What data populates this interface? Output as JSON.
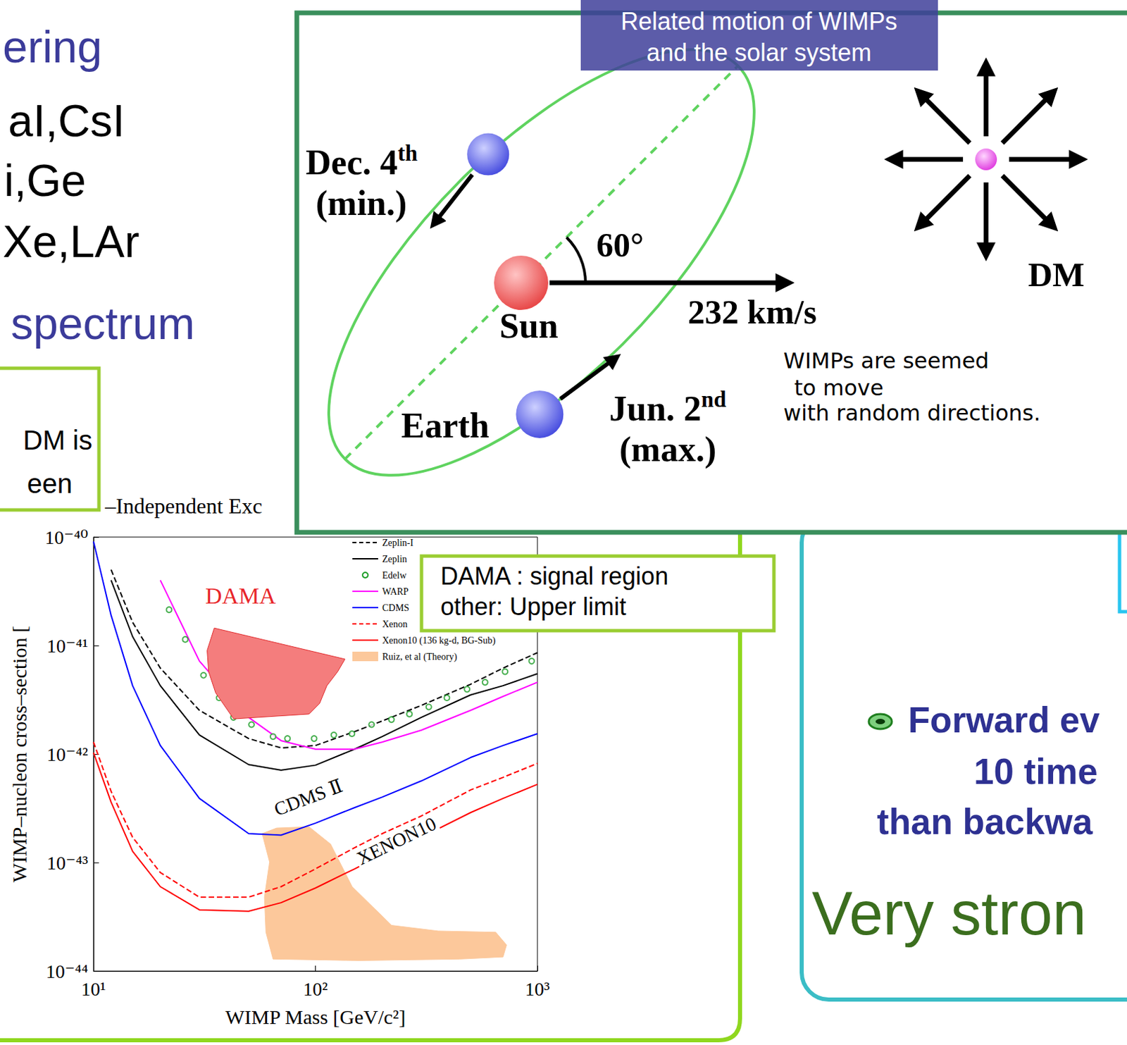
{
  "slide_background": {
    "lines": [
      "ering",
      "aI,CsI",
      "i,Ge",
      "Xe,LAr",
      "spectrum"
    ]
  },
  "side_note": {
    "lines": [
      "DM is",
      "een"
    ]
  },
  "chart_data": {
    "type": "line",
    "title": "–Independent Exc",
    "x_label": "WIMP Mass [GeV/c²]",
    "y_label": "WIMP–nucleon cross–section [",
    "log": true,
    "grid": false,
    "legend": "top-right",
    "xlim": [
      10,
      1000
    ],
    "ylim": [
      1e-44,
      1e-40
    ],
    "xticks": [
      {
        "value": 10,
        "label": "10¹"
      },
      {
        "value": 100,
        "label": "10²"
      },
      {
        "value": 1000,
        "label": "10³"
      }
    ],
    "yticks": [
      {
        "value": 1e-44,
        "label": "10⁻⁴⁴"
      },
      {
        "value": 1e-43,
        "label": "10⁻⁴³"
      },
      {
        "value": 1e-42,
        "label": "10⁻⁴²"
      },
      {
        "value": 1e-41,
        "label": "10⁻⁴¹"
      },
      {
        "value": 1e-40,
        "label": "10⁻⁴⁰"
      }
    ],
    "x": [
      10,
      12,
      15,
      20,
      30,
      50,
      70,
      100,
      150,
      200,
      300,
      500,
      700,
      1000
    ],
    "series": [
      {
        "name": "Zeplin-I",
        "type": "line",
        "color": "#000000",
        "line_style": "dashed",
        "values": [
          null,
          5e-41,
          1.64e-41,
          6.2e-42,
          2.53e-42,
          1.39e-42,
          1.14e-42,
          1.2e-42,
          1.61e-42,
          2.02e-42,
          2.81e-42,
          4.4e-42,
          6.2e-42,
          8.6e-42
        ]
      },
      {
        "name": "Zeplin",
        "type": "line",
        "color": "#000000",
        "line_style": "solid",
        "values": [
          null,
          4e-41,
          1.21e-41,
          4.27e-42,
          1.5e-42,
          8e-43,
          7.1e-43,
          7.9e-43,
          1.11e-42,
          1.45e-42,
          2.18e-42,
          3.51e-42,
          4.27e-42,
          5.5e-42
        ]
      },
      {
        "name": "Edelw",
        "type": "scatter",
        "color": "#1e9e28",
        "marker": "circle",
        "x": [
          21.9,
          25.9,
          31.3,
          36.8,
          42.7,
          51.5,
          64.4,
          74.8,
          98.6,
          121,
          146,
          179,
          220,
          265,
          324,
          391,
          482,
          581,
          715,
          942
        ],
        "values": [
          2.14e-41,
          1.14e-41,
          5.33e-42,
          3.3e-42,
          2.18e-42,
          1.87e-42,
          1.45e-42,
          1.39e-42,
          1.39e-42,
          1.5e-42,
          1.54e-42,
          1.87e-42,
          2.08e-42,
          2.34e-42,
          2.72e-42,
          3.3e-42,
          3.96e-42,
          4.59e-42,
          5.75e-42,
          7.2e-42
        ]
      },
      {
        "name": "WARP",
        "type": "line",
        "color": "#ff00ff",
        "line_style": "solid",
        "values": [
          null,
          null,
          null,
          4e-41,
          7.2e-42,
          2.18e-42,
          1.33e-42,
          1.11e-42,
          1.11e-42,
          1.29e-42,
          1.66e-42,
          2.53e-42,
          3.4e-42,
          4.59e-42
        ]
      },
      {
        "name": "CDMS",
        "type": "line",
        "color": "#0000ff",
        "line_style": "solid",
        "values": [
          9.1e-41,
          1.9e-41,
          4.27e-42,
          1.2e-42,
          3.9e-43,
          1.85e-43,
          1.79e-43,
          2.31e-43,
          3.21e-43,
          4.02e-43,
          5.66e-43,
          9.3e-43,
          1.2e-42,
          1.54e-42
        ]
      },
      {
        "name": "Xenon",
        "type": "line",
        "color": "#ff0000",
        "line_style": "dashed",
        "values": [
          1.29e-42,
          4.53e-43,
          1.71e-43,
          8.1e-44,
          4.8e-44,
          4.8e-44,
          6e-44,
          8.75e-44,
          1.37e-43,
          1.85e-43,
          2.69e-43,
          4.67e-43,
          6.1e-43,
          8.2e-43
        ]
      },
      {
        "name": "Xenon10 (136 kg-d, BG-Sub)",
        "type": "line",
        "color": "#ff0000",
        "line_style": "solid",
        "values": [
          1.03e-42,
          3.61e-43,
          1.27e-43,
          6e-44,
          3.67e-44,
          3.56e-44,
          4.27e-44,
          5.83e-44,
          8.75e-44,
          1.18e-43,
          1.71e-43,
          2.89e-43,
          3.9e-43,
          5.26e-43
        ]
      },
      {
        "name": "Ruiz, et al (Theory)",
        "type": "region",
        "color": "#fcc89b",
        "x": [
          57.5,
          66.8,
          93.5,
          117,
          146.3,
          220.3,
          357.5,
          649,
          726,
          700,
          447,
          157.5,
          64.4,
          59.8,
          58.9,
          62.1
        ],
        "values": [
          1.85e-43,
          2.08e-43,
          2.14e-43,
          1.48e-43,
          6e-44,
          2.64e-44,
          2.34e-44,
          2.28e-44,
          1.74e-44,
          1.35e-44,
          1.29e-44,
          1.25e-44,
          1.29e-44,
          2.28e-44,
          4.8e-44,
          1.01e-43
        ]
      }
    ],
    "signal_regions": [
      {
        "name": "DAMA",
        "type": "region",
        "color": "#f47d7d",
        "x": [
          35.0,
          135.8,
          125.9,
          112.6,
          104.5,
          93.5,
          42.8,
          35.5,
          33.0,
          32.5
        ],
        "values": [
          1.45e-41,
          7.5e-42,
          5.75e-42,
          4.27e-42,
          2.94e-42,
          2.34e-42,
          2.11e-42,
          3.67e-42,
          5.75e-42,
          9e-42
        ]
      }
    ],
    "annotations": [
      "CDMS Ⅱ",
      "XENON10"
    ]
  },
  "chart_note": {
    "lines": [
      "DAMA : signal region",
      "other: Upper limit"
    ]
  },
  "orbit_diagram": {
    "title": [
      "Related motion of WIMPs",
      "and the solar system"
    ],
    "dec": {
      "label": "Dec. 4",
      "sup": "th",
      "note": "(min.)"
    },
    "jun": {
      "label": "Jun. 2",
      "sup": "nd",
      "note": "(max.)"
    },
    "sun": "Sun",
    "earth": "Earth",
    "speed": "232 km/s",
    "angle": "60°",
    "dm": "DM",
    "dm_note": [
      "WIMPs are seemed",
      "to move",
      "with random directions."
    ]
  },
  "side_panel": {
    "lines": [
      "Forward ev",
      "10 time",
      "than backwa"
    ],
    "headline": "Very stron"
  }
}
